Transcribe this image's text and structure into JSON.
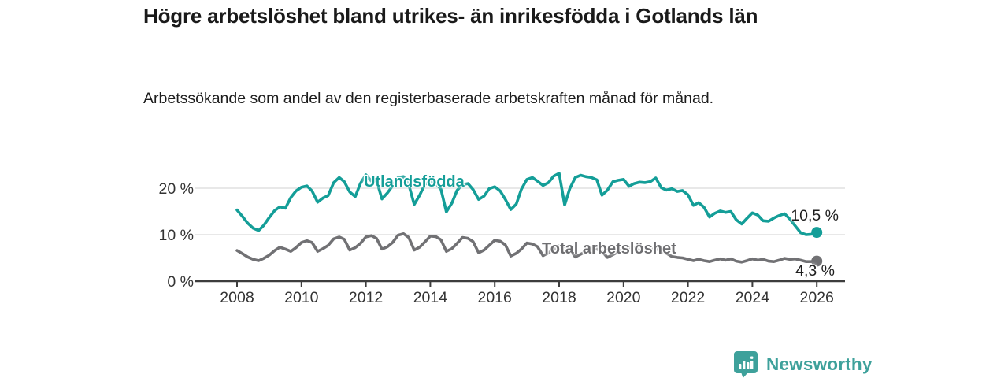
{
  "header": {
    "title": "Högre arbetslöshet bland utrikes- än inrikesfödda i Gotlands län",
    "subtitle": "Arbetssökande som andel av den registerbaserade arbetskraften månad för månad."
  },
  "branding": {
    "label": "Newsworthy",
    "color": "#3ea19b",
    "icon": "newsworthy-chart-bubble-icon"
  },
  "colors": {
    "background": "#ffffff",
    "title_text": "#1a1a1a",
    "axis_text": "#333333",
    "axis_line": "#3d3d3d",
    "gridline": "#dadada",
    "series_utlandsfodda": "#149e98",
    "series_total": "#717174",
    "annotation_text": "#1e1e1e"
  },
  "chart_data": {
    "type": "line",
    "title": "Högre arbetslöshet bland utrikes- än inrikesfödda i Gotlands län",
    "subtitle": "Arbetssökande som andel av den registerbaserade arbetskraften månad för månad.",
    "xlabel": "",
    "ylabel": "",
    "unit": "%",
    "legend_position": "inline-labels",
    "x_axis": {
      "ticks": [
        2008,
        2010,
        2012,
        2014,
        2016,
        2018,
        2020,
        2022,
        2024,
        2026
      ],
      "range_years": [
        2008,
        2026
      ]
    },
    "y_axis": {
      "ticks": [
        0,
        10,
        20
      ],
      "tick_labels": [
        "0 %",
        "10 %",
        "20 %"
      ],
      "range": [
        0,
        24
      ],
      "gridlines": true
    },
    "series": [
      {
        "name": "Utlandsfödda",
        "color": "#149e98",
        "end_value": 10.5,
        "end_label": "10,5 %",
        "points": [
          [
            2008.0,
            15.3
          ],
          [
            2008.17,
            13.9
          ],
          [
            2008.33,
            12.5
          ],
          [
            2008.5,
            11.4
          ],
          [
            2008.67,
            10.9
          ],
          [
            2008.83,
            12.0
          ],
          [
            2009.0,
            13.7
          ],
          [
            2009.17,
            15.2
          ],
          [
            2009.33,
            16.0
          ],
          [
            2009.5,
            15.7
          ],
          [
            2009.67,
            18.0
          ],
          [
            2009.83,
            19.4
          ],
          [
            2010.0,
            20.2
          ],
          [
            2010.17,
            20.5
          ],
          [
            2010.33,
            19.4
          ],
          [
            2010.5,
            17.0
          ],
          [
            2010.67,
            17.9
          ],
          [
            2010.83,
            18.4
          ],
          [
            2011.0,
            21.2
          ],
          [
            2011.17,
            22.3
          ],
          [
            2011.33,
            21.4
          ],
          [
            2011.5,
            19.2
          ],
          [
            2011.67,
            18.2
          ],
          [
            2011.83,
            21.0
          ],
          [
            2012.0,
            22.9
          ],
          [
            2012.17,
            21.5
          ],
          [
            2012.33,
            21.7
          ],
          [
            2012.5,
            17.7
          ],
          [
            2012.67,
            19.0
          ],
          [
            2012.83,
            20.5
          ],
          [
            2013.0,
            22.3
          ],
          [
            2013.17,
            22.5
          ],
          [
            2013.33,
            20.8
          ],
          [
            2013.5,
            16.5
          ],
          [
            2013.67,
            18.5
          ],
          [
            2013.83,
            20.8
          ],
          [
            2014.0,
            21.4
          ],
          [
            2014.17,
            21.0
          ],
          [
            2014.33,
            19.8
          ],
          [
            2014.5,
            14.9
          ],
          [
            2014.67,
            16.8
          ],
          [
            2014.83,
            19.5
          ],
          [
            2015.0,
            20.8
          ],
          [
            2015.17,
            21.0
          ],
          [
            2015.33,
            19.7
          ],
          [
            2015.5,
            17.6
          ],
          [
            2015.67,
            18.3
          ],
          [
            2015.83,
            19.9
          ],
          [
            2016.0,
            20.3
          ],
          [
            2016.17,
            19.4
          ],
          [
            2016.33,
            17.6
          ],
          [
            2016.5,
            15.4
          ],
          [
            2016.67,
            16.6
          ],
          [
            2016.83,
            19.8
          ],
          [
            2017.0,
            21.9
          ],
          [
            2017.17,
            22.3
          ],
          [
            2017.33,
            21.5
          ],
          [
            2017.5,
            20.6
          ],
          [
            2017.67,
            21.2
          ],
          [
            2017.83,
            22.6
          ],
          [
            2018.0,
            23.2
          ],
          [
            2018.17,
            16.4
          ],
          [
            2018.33,
            19.9
          ],
          [
            2018.5,
            22.3
          ],
          [
            2018.67,
            22.8
          ],
          [
            2018.83,
            22.5
          ],
          [
            2019.0,
            22.3
          ],
          [
            2019.17,
            21.8
          ],
          [
            2019.33,
            18.5
          ],
          [
            2019.5,
            19.6
          ],
          [
            2019.67,
            21.4
          ],
          [
            2019.83,
            21.7
          ],
          [
            2020.0,
            21.9
          ],
          [
            2020.17,
            20.4
          ],
          [
            2020.33,
            21.0
          ],
          [
            2020.5,
            21.3
          ],
          [
            2020.67,
            21.2
          ],
          [
            2020.83,
            21.4
          ],
          [
            2021.0,
            22.2
          ],
          [
            2021.17,
            20.1
          ],
          [
            2021.33,
            19.6
          ],
          [
            2021.5,
            19.9
          ],
          [
            2021.67,
            19.3
          ],
          [
            2021.83,
            19.5
          ],
          [
            2022.0,
            18.6
          ],
          [
            2022.17,
            16.3
          ],
          [
            2022.33,
            16.9
          ],
          [
            2022.5,
            15.9
          ],
          [
            2022.67,
            13.8
          ],
          [
            2022.83,
            14.6
          ],
          [
            2023.0,
            15.1
          ],
          [
            2023.17,
            14.8
          ],
          [
            2023.33,
            15.0
          ],
          [
            2023.5,
            13.2
          ],
          [
            2023.67,
            12.3
          ],
          [
            2023.83,
            13.5
          ],
          [
            2024.0,
            14.7
          ],
          [
            2024.17,
            14.2
          ],
          [
            2024.33,
            13.0
          ],
          [
            2024.5,
            12.9
          ],
          [
            2024.67,
            13.6
          ],
          [
            2024.83,
            14.1
          ],
          [
            2025.0,
            14.5
          ],
          [
            2025.17,
            13.3
          ],
          [
            2025.33,
            11.9
          ],
          [
            2025.5,
            10.4
          ],
          [
            2025.67,
            10.0
          ],
          [
            2025.83,
            10.1
          ],
          [
            2026.0,
            10.5
          ]
        ]
      },
      {
        "name": "Total arbetslöshet",
        "color": "#717174",
        "end_value": 4.3,
        "end_label": "4,3 %",
        "points": [
          [
            2008.0,
            6.6
          ],
          [
            2008.17,
            5.9
          ],
          [
            2008.33,
            5.2
          ],
          [
            2008.5,
            4.7
          ],
          [
            2008.67,
            4.4
          ],
          [
            2008.83,
            4.9
          ],
          [
            2009.0,
            5.6
          ],
          [
            2009.17,
            6.6
          ],
          [
            2009.33,
            7.3
          ],
          [
            2009.5,
            6.9
          ],
          [
            2009.67,
            6.4
          ],
          [
            2009.83,
            7.2
          ],
          [
            2010.0,
            8.3
          ],
          [
            2010.17,
            8.7
          ],
          [
            2010.33,
            8.3
          ],
          [
            2010.5,
            6.4
          ],
          [
            2010.67,
            7.0
          ],
          [
            2010.83,
            7.7
          ],
          [
            2011.0,
            9.1
          ],
          [
            2011.17,
            9.5
          ],
          [
            2011.33,
            9.0
          ],
          [
            2011.5,
            6.7
          ],
          [
            2011.67,
            7.2
          ],
          [
            2011.83,
            8.1
          ],
          [
            2012.0,
            9.5
          ],
          [
            2012.17,
            9.8
          ],
          [
            2012.33,
            9.2
          ],
          [
            2012.5,
            6.9
          ],
          [
            2012.67,
            7.4
          ],
          [
            2012.83,
            8.3
          ],
          [
            2013.0,
            9.9
          ],
          [
            2013.17,
            10.2
          ],
          [
            2013.33,
            9.4
          ],
          [
            2013.5,
            6.7
          ],
          [
            2013.67,
            7.3
          ],
          [
            2013.83,
            8.4
          ],
          [
            2014.0,
            9.7
          ],
          [
            2014.17,
            9.6
          ],
          [
            2014.33,
            8.9
          ],
          [
            2014.5,
            6.4
          ],
          [
            2014.67,
            7.0
          ],
          [
            2014.83,
            8.1
          ],
          [
            2015.0,
            9.4
          ],
          [
            2015.17,
            9.2
          ],
          [
            2015.33,
            8.5
          ],
          [
            2015.5,
            6.1
          ],
          [
            2015.67,
            6.7
          ],
          [
            2015.83,
            7.7
          ],
          [
            2016.0,
            8.8
          ],
          [
            2016.17,
            8.6
          ],
          [
            2016.33,
            7.8
          ],
          [
            2016.5,
            5.4
          ],
          [
            2016.67,
            6.0
          ],
          [
            2016.83,
            6.9
          ],
          [
            2017.0,
            8.2
          ],
          [
            2017.17,
            8.0
          ],
          [
            2017.33,
            7.4
          ],
          [
            2017.5,
            5.5
          ],
          [
            2017.67,
            6.1
          ],
          [
            2017.83,
            6.8
          ],
          [
            2018.0,
            7.6
          ],
          [
            2018.17,
            7.4
          ],
          [
            2018.33,
            6.9
          ],
          [
            2018.5,
            5.2
          ],
          [
            2018.67,
            5.8
          ],
          [
            2018.83,
            6.4
          ],
          [
            2019.0,
            7.1
          ],
          [
            2019.17,
            6.9
          ],
          [
            2019.33,
            6.4
          ],
          [
            2019.5,
            5.1
          ],
          [
            2019.67,
            5.7
          ],
          [
            2019.83,
            6.3
          ],
          [
            2020.0,
            7.0
          ],
          [
            2020.17,
            7.3
          ],
          [
            2020.33,
            7.1
          ],
          [
            2020.5,
            6.6
          ],
          [
            2020.67,
            6.8
          ],
          [
            2020.83,
            6.9
          ],
          [
            2021.0,
            7.0
          ],
          [
            2021.17,
            6.5
          ],
          [
            2021.33,
            6.0
          ],
          [
            2021.5,
            5.3
          ],
          [
            2021.67,
            5.1
          ],
          [
            2021.83,
            5.0
          ],
          [
            2022.0,
            4.7
          ],
          [
            2022.17,
            4.4
          ],
          [
            2022.33,
            4.7
          ],
          [
            2022.5,
            4.4
          ],
          [
            2022.67,
            4.2
          ],
          [
            2022.83,
            4.5
          ],
          [
            2023.0,
            4.8
          ],
          [
            2023.17,
            4.5
          ],
          [
            2023.33,
            4.8
          ],
          [
            2023.5,
            4.3
          ],
          [
            2023.67,
            4.1
          ],
          [
            2023.83,
            4.4
          ],
          [
            2024.0,
            4.8
          ],
          [
            2024.17,
            4.5
          ],
          [
            2024.33,
            4.7
          ],
          [
            2024.5,
            4.3
          ],
          [
            2024.67,
            4.2
          ],
          [
            2024.83,
            4.5
          ],
          [
            2025.0,
            4.9
          ],
          [
            2025.17,
            4.7
          ],
          [
            2025.33,
            4.8
          ],
          [
            2025.5,
            4.5
          ],
          [
            2025.67,
            4.2
          ],
          [
            2025.83,
            4.2
          ],
          [
            2026.0,
            4.3
          ]
        ]
      }
    ]
  }
}
